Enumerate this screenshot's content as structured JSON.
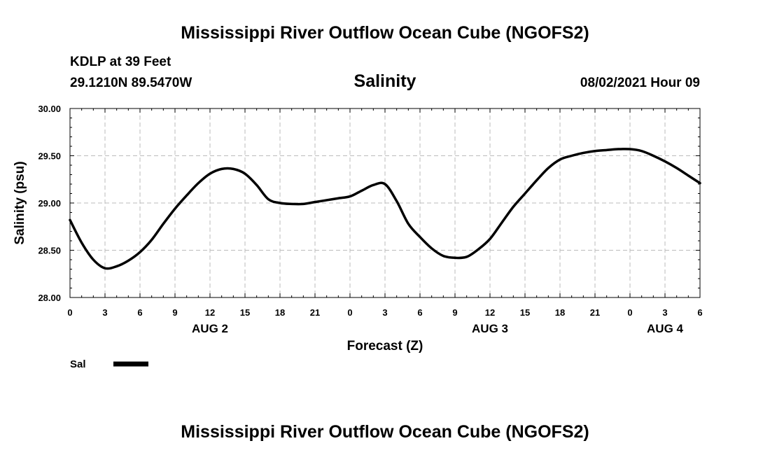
{
  "page": {
    "title": "Mississippi River Outflow Ocean Cube (NGOFS2)",
    "footer_title": "Mississippi River Outflow Ocean Cube (NGOFS2)",
    "station": "KDLP at 39 Feet",
    "coordinates": "29.1210N  89.5470W",
    "issued": "08/02/2021 Hour 09"
  },
  "chart_data": {
    "type": "line",
    "title": "Salinity",
    "xlabel": "Forecast (Z)",
    "ylabel": "Salinity (psu)",
    "ylim": [
      28.0,
      30.0
    ],
    "xlim": [
      0,
      54
    ],
    "x_unit": "forecast hours",
    "y_ticks": [
      "28.00",
      "28.50",
      "29.00",
      "29.50",
      "30.00"
    ],
    "x_tick_labels": [
      "0",
      "3",
      "6",
      "9",
      "12",
      "15",
      "18",
      "21",
      "0",
      "3",
      "6",
      "9",
      "12",
      "15",
      "18",
      "21",
      "0",
      "3",
      "6"
    ],
    "date_labels": [
      {
        "label": "AUG 2",
        "hour": 12
      },
      {
        "label": "AUG 3",
        "hour": 36
      },
      {
        "label": "AUG 4",
        "hour": 51
      }
    ],
    "grid": true,
    "legend": {
      "position": "bottom-left",
      "entries": [
        "Sal"
      ]
    },
    "series": [
      {
        "name": "Sal",
        "color": "#000000",
        "x": [
          0,
          1,
          2,
          3,
          4,
          5,
          6,
          7,
          8,
          9,
          10,
          11,
          12,
          13,
          14,
          15,
          16,
          17,
          18,
          19,
          20,
          21,
          22,
          23,
          24,
          25,
          26,
          27,
          28,
          29,
          30,
          31,
          32,
          33,
          34,
          35,
          36,
          37,
          38,
          39,
          40,
          41,
          42,
          43,
          44,
          45,
          46,
          47,
          48,
          49,
          50,
          51,
          52,
          53,
          54
        ],
        "values": [
          28.82,
          28.58,
          28.4,
          28.31,
          28.33,
          28.39,
          28.48,
          28.61,
          28.78,
          28.94,
          29.08,
          29.21,
          29.31,
          29.36,
          29.36,
          29.31,
          29.19,
          29.04,
          29.0,
          28.99,
          28.99,
          29.01,
          29.03,
          29.05,
          29.07,
          29.13,
          29.19,
          29.2,
          29.02,
          28.78,
          28.64,
          28.52,
          28.44,
          28.42,
          28.43,
          28.51,
          28.62,
          28.79,
          28.96,
          29.1,
          29.24,
          29.37,
          29.46,
          29.5,
          29.53,
          29.55,
          29.56,
          29.57,
          29.57,
          29.55,
          29.5,
          29.44,
          29.37,
          29.29,
          29.21
        ]
      }
    ]
  }
}
